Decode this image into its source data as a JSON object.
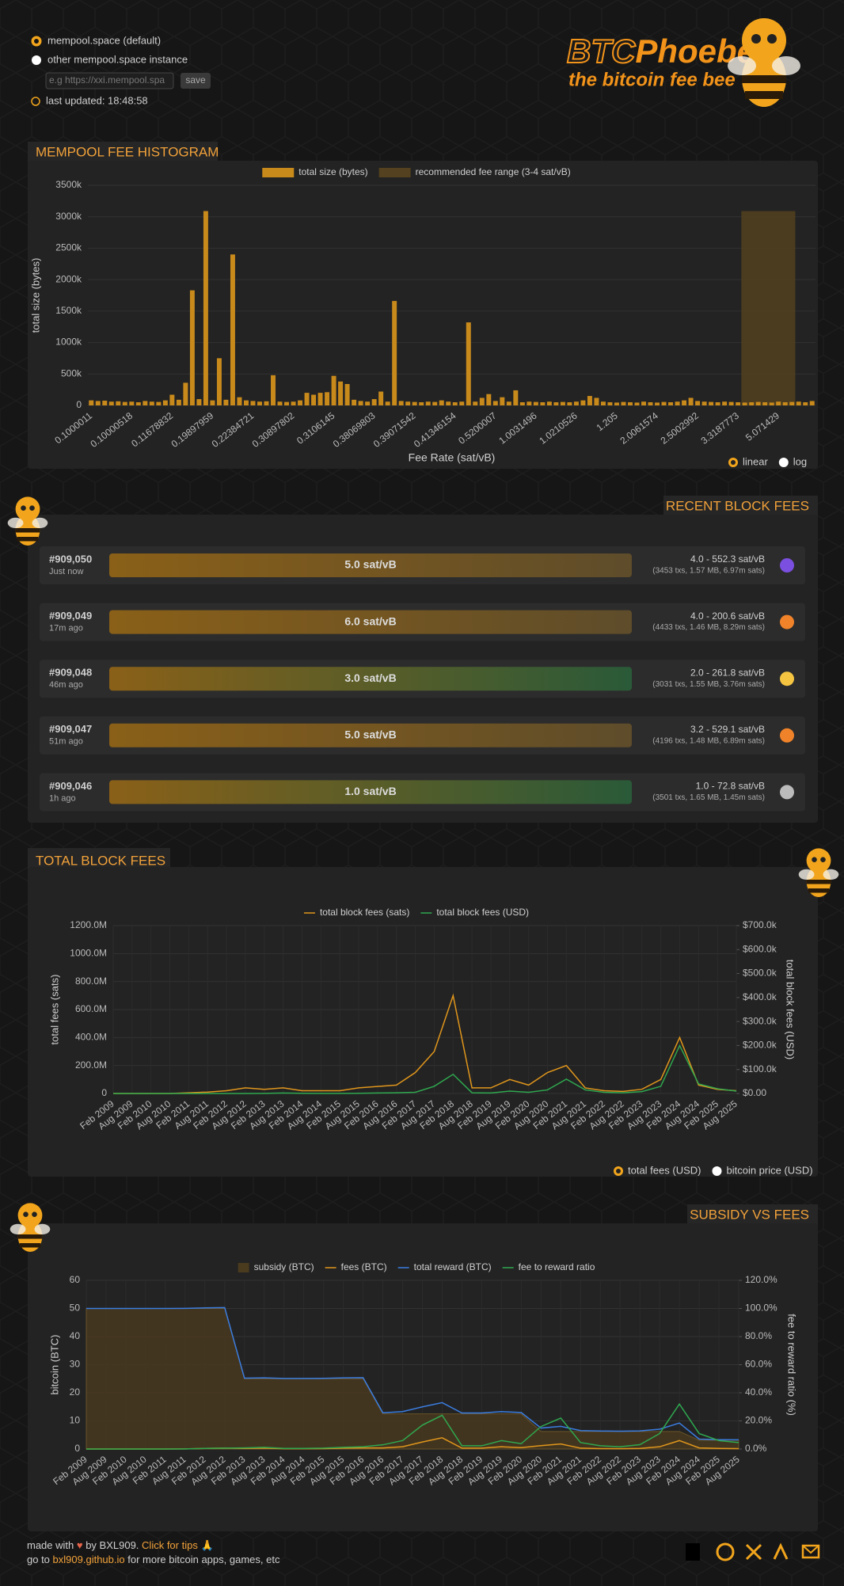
{
  "header": {
    "options": [
      "mempool.space (default)",
      "other mempool.space instance"
    ],
    "selected": 0,
    "placeholder": "e.g https://xxi.mempool.spa",
    "save": "save",
    "last_updated": "last updated: 18:48:58"
  },
  "logo": {
    "name_a": "BTC",
    "name_b": "Phoebe",
    "tagline": "the bitcoin fee bee"
  },
  "chart_data": [
    {
      "type": "bar",
      "title": "MEMPOOL FEE HISTOGRAM",
      "x_label": "Fee Rate (sat/vB)",
      "y_label": "total size (bytes)",
      "categories": [
        "0.1000011",
        null,
        null,
        null,
        null,
        null,
        "0.10000518",
        null,
        null,
        null,
        null,
        null,
        "0.11678832",
        null,
        null,
        null,
        null,
        null,
        "0.19897959",
        null,
        null,
        null,
        null,
        null,
        "0.22384721",
        null,
        null,
        null,
        null,
        null,
        "0.30897802",
        null,
        null,
        null,
        null,
        null,
        "0.3106145",
        null,
        null,
        null,
        null,
        null,
        "0.38069803",
        null,
        null,
        null,
        null,
        null,
        "0.39071542",
        null,
        null,
        null,
        null,
        null,
        "0.41346154",
        null,
        null,
        null,
        null,
        null,
        "0.5200007",
        null,
        null,
        null,
        null,
        null,
        "1.0031496",
        null,
        null,
        null,
        null,
        null,
        "1.0210526",
        null,
        null,
        null,
        null,
        null,
        "1.205",
        null,
        null,
        null,
        null,
        null,
        "2.0061574",
        null,
        null,
        null,
        null,
        null,
        "2.5002992",
        null,
        null,
        null,
        null,
        null,
        "3.3187773",
        null,
        null,
        null,
        null,
        null,
        "5.071429",
        null,
        null,
        null,
        null,
        null
      ],
      "series": [
        {
          "name": "total size (bytes)",
          "color": "#c98a1c",
          "values": [
            80000,
            70000,
            75000,
            60000,
            65000,
            55000,
            60000,
            50000,
            70000,
            60000,
            55000,
            80000,
            170000,
            90000,
            360000,
            1830000,
            100000,
            3090000,
            80000,
            750000,
            90000,
            2400000,
            130000,
            80000,
            70000,
            60000,
            65000,
            480000,
            60000,
            55000,
            60000,
            80000,
            200000,
            170000,
            200000,
            210000,
            470000,
            380000,
            340000,
            90000,
            70000,
            60000,
            100000,
            220000,
            60000,
            1660000,
            70000,
            60000,
            55000,
            50000,
            60000,
            55000,
            80000,
            60000,
            50000,
            60000,
            1320000,
            60000,
            120000,
            180000,
            70000,
            130000,
            60000,
            240000,
            50000,
            60000,
            55000,
            50000,
            60000,
            50000,
            55000,
            50000,
            60000,
            80000,
            150000,
            120000,
            60000,
            50000,
            45000,
            55000,
            50000,
            45000,
            60000,
            50000,
            45000,
            55000,
            50000,
            60000,
            80000,
            120000,
            70000,
            60000,
            55000,
            50000,
            60000,
            55000,
            50000,
            45000,
            50000,
            55000,
            50000,
            45000,
            60000,
            50000,
            55000,
            60000,
            50000,
            70000
          ]
        }
      ],
      "band": {
        "name": "recommended fee range (3-4 sat/vB)",
        "color": "#54411f",
        "from": 97,
        "to": 104
      },
      "ylim": [
        0,
        3500000
      ],
      "yticks": [
        0,
        {
          "value": 500000,
          "label": "500k"
        },
        {
          "value": 1000000,
          "label": "1000k"
        },
        {
          "value": 1500000,
          "label": "1500k"
        },
        {
          "value": 2000000,
          "label": "2000k"
        },
        {
          "value": 2500000,
          "label": "2500k"
        },
        {
          "value": 3000000,
          "label": "3000k"
        },
        {
          "value": 3500000,
          "label": "3500k"
        }
      ],
      "grid": true,
      "options": [
        "linear",
        "log"
      ],
      "selected": 0
    },
    {
      "type": "line",
      "title": "TOTAL BLOCK FEES",
      "y_label": "total fees (sats)",
      "y2_label": "total block fees (USD)",
      "categories": [
        "Feb 2009",
        "Aug 2009",
        "Feb 2010",
        "Aug 2010",
        "Feb 2011",
        "Aug 2011",
        "Feb 2012",
        "Aug 2012",
        "Feb 2013",
        "Aug 2013",
        "Feb 2014",
        "Aug 2014",
        "Feb 2015",
        "Aug 2015",
        "Feb 2016",
        "Aug 2016",
        "Feb 2017",
        "Aug 2017",
        "Feb 2018",
        "Aug 2018",
        "Feb 2019",
        "Aug 2019",
        "Feb 2020",
        "Aug 2020",
        "Feb 2021",
        "Aug 2021",
        "Feb 2022",
        "Aug 2022",
        "Feb 2023",
        "Aug 2023",
        "Feb 2024",
        "Aug 2024",
        "Feb 2025",
        "Aug 2025"
      ],
      "series": [
        {
          "name": "total block fees (sats)",
          "color": "#e0961c",
          "values": [
            0,
            0,
            0,
            0,
            5000000,
            10000000,
            20000000,
            40000000,
            30000000,
            40000000,
            20000000,
            20000000,
            20000000,
            40000000,
            50000000,
            60000000,
            150000000,
            300000000,
            700000000,
            40000000,
            40000000,
            100000000,
            60000000,
            150000000,
            200000000,
            40000000,
            20000000,
            15000000,
            30000000,
            100000000,
            400000000,
            60000000,
            30000000,
            20000000
          ]
        },
        {
          "name": "total block fees (USD)",
          "color": "#2fa84f",
          "axis": "y2",
          "values": [
            0,
            0,
            0,
            0,
            0,
            10,
            50,
            200,
            300,
            2000,
            1000,
            500,
            500,
            1000,
            2000,
            3000,
            5000,
            30000,
            80000,
            3000,
            2000,
            10000,
            5000,
            15000,
            60000,
            15000,
            5000,
            3000,
            8000,
            30000,
            200000,
            40000,
            20000,
            10000
          ]
        }
      ],
      "ylim": [
        0,
        1200000000
      ],
      "yticks": [
        0,
        {
          "value": 200000000,
          "label": "200.0M"
        },
        {
          "value": 400000000,
          "label": "400.0M"
        },
        {
          "value": 600000000,
          "label": "600.0M"
        },
        {
          "value": 800000000,
          "label": "800.0M"
        },
        {
          "value": 1000000000,
          "label": "1000.0M"
        },
        {
          "value": 1200000000,
          "label": "1200.0M"
        }
      ],
      "y2lim": [
        0,
        700000
      ],
      "y2ticks": [
        {
          "value": 0,
          "label": "$0.00"
        },
        {
          "value": 100000,
          "label": "$100.0k"
        },
        {
          "value": 200000,
          "label": "$200.0k"
        },
        {
          "value": 300000,
          "label": "$300.0k"
        },
        {
          "value": 400000,
          "label": "$400.0k"
        },
        {
          "value": 500000,
          "label": "$500.0k"
        },
        {
          "value": 600000,
          "label": "$600.0k"
        },
        {
          "value": 700000,
          "label": "$700.0k"
        }
      ],
      "grid": true,
      "options": [
        "total fees (USD)",
        "bitcoin price (USD)"
      ],
      "selected": 0
    },
    {
      "type": "line",
      "title": "SUBSIDY VS FEES",
      "y_label": "bitcoin (BTC)",
      "y2_label": "fee to reward ratio (%)",
      "categories": [
        "Feb 2009",
        "Aug 2009",
        "Feb 2010",
        "Aug 2010",
        "Feb 2011",
        "Aug 2011",
        "Feb 2012",
        "Aug 2012",
        "Feb 2013",
        "Aug 2013",
        "Feb 2014",
        "Aug 2014",
        "Feb 2015",
        "Aug 2015",
        "Feb 2016",
        "Aug 2016",
        "Feb 2017",
        "Aug 2017",
        "Feb 2018",
        "Aug 2018",
        "Feb 2019",
        "Aug 2019",
        "Feb 2020",
        "Aug 2020",
        "Feb 2021",
        "Aug 2021",
        "Feb 2022",
        "Aug 2022",
        "Feb 2023",
        "Aug 2023",
        "Feb 2024",
        "Aug 2024",
        "Feb 2025",
        "Aug 2025"
      ],
      "series": [
        {
          "name": "subsidy (BTC)",
          "color": "#4a3a1e",
          "kind": "area",
          "values": [
            50,
            50,
            50,
            50,
            50,
            50,
            50,
            50,
            25,
            25,
            25,
            25,
            25,
            25,
            25,
            12.5,
            12.5,
            12.5,
            12.5,
            12.5,
            12.5,
            12.5,
            12.5,
            6.25,
            6.25,
            6.25,
            6.25,
            6.25,
            6.25,
            6.25,
            6.25,
            3.125,
            3.125,
            3.125
          ]
        },
        {
          "name": "fees (BTC)",
          "color": "#e0961c",
          "values": [
            0,
            0,
            0,
            0,
            0,
            0.05,
            0.2,
            0.3,
            0.2,
            0.3,
            0.1,
            0.1,
            0.15,
            0.3,
            0.4,
            0.4,
            0.8,
            2.5,
            4,
            0.3,
            0.3,
            0.8,
            0.5,
            1.2,
            1.8,
            0.3,
            0.15,
            0.1,
            0.2,
            0.8,
            3,
            0.4,
            0.2,
            0.15
          ]
        },
        {
          "name": "total reward (BTC)",
          "color": "#3b7de0",
          "values": [
            50,
            50,
            50,
            50,
            50,
            50.05,
            50.2,
            50.3,
            25.2,
            25.3,
            25.1,
            25.1,
            25.15,
            25.3,
            25.4,
            12.9,
            13.3,
            15,
            16.5,
            12.8,
            12.8,
            13.3,
            13,
            7.45,
            8.05,
            6.55,
            6.4,
            6.35,
            6.45,
            7.05,
            9.25,
            3.525,
            3.325,
            3.275
          ]
        },
        {
          "name": "fee to reward ratio",
          "color": "#2fa84f",
          "axis": "y2",
          "values": [
            0,
            0,
            0,
            0,
            0,
            0.1,
            0.4,
            0.6,
            0.8,
            1.2,
            0.4,
            0.4,
            0.6,
            1.2,
            1.6,
            3,
            6,
            17,
            24,
            2.3,
            2.3,
            6,
            3.8,
            16,
            22,
            4.6,
            2.3,
            1.6,
            3.1,
            11,
            32,
            11,
            6,
            4.6
          ]
        }
      ],
      "ylim": [
        0,
        60
      ],
      "yticks": [
        0,
        10,
        20,
        30,
        40,
        50,
        60
      ],
      "y2lim": [
        0,
        120
      ],
      "y2ticks": [
        {
          "value": 0,
          "label": "0.0%"
        },
        {
          "value": 20,
          "label": "20.0%"
        },
        {
          "value": 40,
          "label": "40.0%"
        },
        {
          "value": 60,
          "label": "60.0%"
        },
        {
          "value": 80,
          "label": "80.0%"
        },
        {
          "value": 100,
          "label": "100.0%"
        },
        {
          "value": 120,
          "label": "120.0%"
        }
      ],
      "grid": true
    }
  ],
  "recent_blocks": {
    "title": "RECENT BLOCK FEES",
    "blocks": [
      {
        "height": "#909,050",
        "age": "Just now",
        "median": "5.0 sat/vB",
        "range": "4.0 - 552.3 sat/vB",
        "details": "(3453 txs, 1.57 MB, 6.97m sats)",
        "gradient": [
          "#8a6018",
          "#5e4c2a"
        ],
        "icon": "#7b4fe0"
      },
      {
        "height": "#909,049",
        "age": "17m ago",
        "median": "6.0 sat/vB",
        "range": "4.0 - 200.6 sat/vB",
        "details": "(4433 txs, 1.46 MB, 8.29m sats)",
        "gradient": [
          "#8a6018",
          "#5e4c2a"
        ],
        "icon": "#f0832a"
      },
      {
        "height": "#909,048",
        "age": "46m ago",
        "median": "3.0 sat/vB",
        "range": "2.0 - 261.8 sat/vB",
        "details": "(3031 txs, 1.55 MB, 3.76m sats)",
        "gradient": [
          "#8a6018",
          "#2a5a38"
        ],
        "icon": "#f5c542"
      },
      {
        "height": "#909,047",
        "age": "51m ago",
        "median": "5.0 sat/vB",
        "range": "3.2 - 529.1 sat/vB",
        "details": "(4196 txs, 1.48 MB, 6.89m sats)",
        "gradient": [
          "#8a6018",
          "#5e4c2a"
        ],
        "icon": "#f0832a"
      },
      {
        "height": "#909,046",
        "age": "1h ago",
        "median": "1.0 sat/vB",
        "range": "1.0 - 72.8 sat/vB",
        "details": "(3501 txs, 1.65 MB, 1.45m sats)",
        "gradient": [
          "#8a6018",
          "#2a5a38"
        ],
        "icon": "#bbbbbb"
      }
    ]
  },
  "footer": {
    "made": "made with",
    "by": "by BXL909.",
    "tips": "Click for tips 🙏",
    "go": "go to",
    "link": "bxl909.github.io",
    "more": "for more bitcoin apps, games, etc"
  }
}
